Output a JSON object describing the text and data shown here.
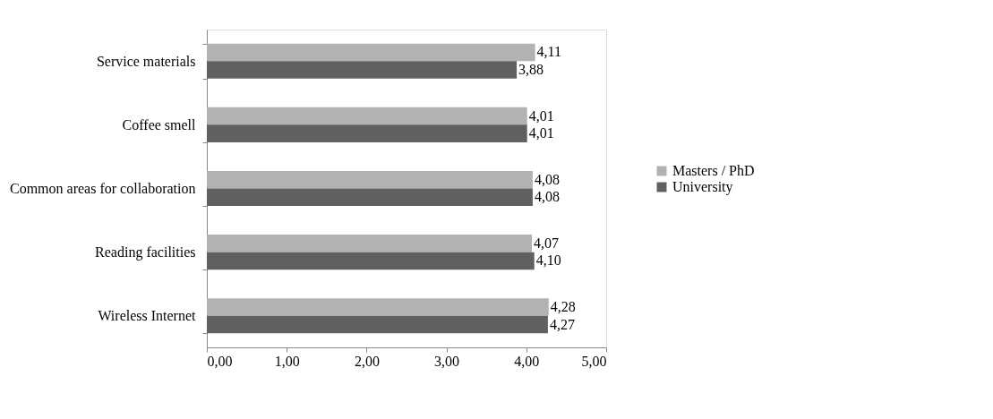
{
  "chart_data": {
    "type": "bar",
    "orientation": "horizontal",
    "categories": [
      "Service materials",
      "Coffee smell",
      "Common areas for collaboration",
      "Reading facilities",
      "Wireless Internet"
    ],
    "series": [
      {
        "name": "Masters / PhD",
        "color": "#b2b2b2",
        "values": [
          4.11,
          4.01,
          4.08,
          4.07,
          4.28
        ],
        "value_labels": [
          "4,11",
          "4,01",
          "4,08",
          "4,07",
          "4,28"
        ]
      },
      {
        "name": "University",
        "color": "#606060",
        "values": [
          3.88,
          4.01,
          4.08,
          4.1,
          4.27
        ],
        "value_labels": [
          "3,88",
          "4,01",
          "4,08",
          "4,10",
          "4,27"
        ]
      }
    ],
    "xlim": [
      0,
      5
    ],
    "xticks": [
      {
        "value": 0,
        "label": "0,00"
      },
      {
        "value": 1,
        "label": "1,00"
      },
      {
        "value": 2,
        "label": "2,00"
      },
      {
        "value": 3,
        "label": "3,00"
      },
      {
        "value": 4,
        "label": "4,00"
      },
      {
        "value": 5,
        "label": "5,00"
      }
    ],
    "grid": false,
    "legend": "right"
  }
}
